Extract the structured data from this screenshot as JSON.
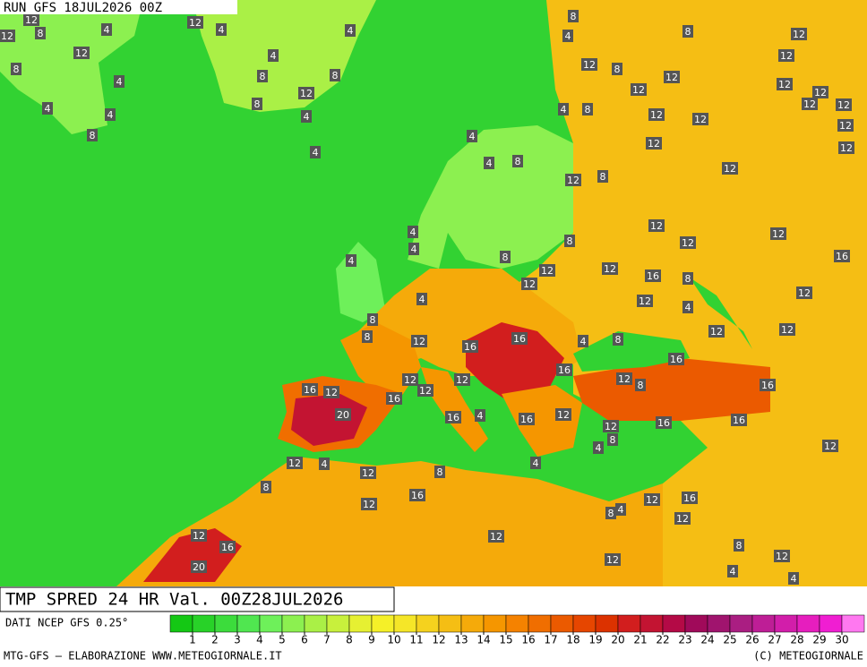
{
  "header": {
    "run": "RUN GFS 18JUL2026 00Z"
  },
  "footer": {
    "title": "TMP SPRED 24 HR Val. 00Z28JUL2026",
    "source": "DATI NCEP GFS 0.25°",
    "credit": "MTG-GFS — ELABORAZIONE WWW.METEOGIORNALE.IT",
    "copyright": "(C) METEOGIORNALE"
  },
  "scale": {
    "colors": [
      "#14c814",
      "#28d228",
      "#3cdc3c",
      "#50e650",
      "#6ef05a",
      "#8cf050",
      "#aaf046",
      "#c8f03c",
      "#e6f032",
      "#f5f028",
      "#f5e628",
      "#f5d21e",
      "#f5be14",
      "#f5aa0a",
      "#f59600",
      "#f58200",
      "#f06e00",
      "#eb5a00",
      "#e64600",
      "#dc3200",
      "#d21e1e",
      "#c31432",
      "#b40a46",
      "#a00a5a",
      "#a0146e",
      "#aa1e82",
      "#be1e96",
      "#d21eaa",
      "#e61ebe",
      "#f01ed2",
      "#ff78f0"
    ],
    "ticks": [
      1,
      2,
      3,
      4,
      5,
      6,
      7,
      8,
      9,
      10,
      11,
      12,
      13,
      14,
      15,
      16,
      17,
      18,
      19,
      20,
      21,
      22,
      23,
      24,
      25,
      26,
      27,
      28,
      29,
      30
    ]
  },
  "map": {
    "labels": [
      12,
      12,
      8,
      4,
      12,
      4,
      8,
      12,
      4,
      4,
      4,
      8,
      8,
      4,
      8,
      12,
      8,
      4,
      4,
      8,
      4,
      8,
      12,
      12,
      12,
      8,
      12,
      12,
      12,
      12,
      12,
      12,
      4,
      8,
      12,
      12,
      12,
      12,
      12,
      4,
      8,
      4,
      4,
      12,
      12,
      8,
      12,
      12,
      12,
      8,
      4,
      4,
      8,
      12,
      12,
      16,
      8,
      16,
      4,
      12,
      4,
      12,
      4,
      12,
      8,
      8,
      12,
      16,
      16,
      4,
      8,
      12,
      12,
      16,
      16,
      12,
      12,
      12,
      16,
      12,
      16,
      12,
      8,
      16,
      20,
      16,
      4,
      16,
      12,
      12,
      16,
      16,
      8,
      4,
      12,
      12,
      4,
      12,
      8,
      4,
      8,
      16,
      12,
      12,
      16,
      12,
      8,
      4,
      12,
      8,
      12,
      12,
      4,
      4,
      12,
      16,
      20
    ]
  }
}
